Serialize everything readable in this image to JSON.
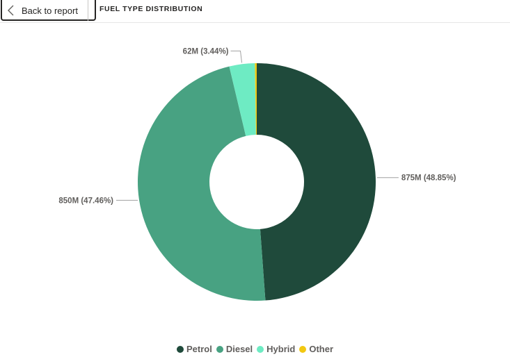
{
  "header": {
    "back_label": "Back to report",
    "page_title": "FUEL TYPE DISTRIBUTION"
  },
  "chart_data": {
    "type": "pie",
    "variant": "donut",
    "title": "",
    "legend_position": "bottom-center",
    "slices": [
      {
        "name": "Petrol",
        "value": 875,
        "percent": 48.85,
        "label": "875M (48.85%)",
        "color": "#1f4a3b"
      },
      {
        "name": "Diesel",
        "value": 850,
        "percent": 47.46,
        "label": "850M (47.46%)",
        "color": "#48a282"
      },
      {
        "name": "Hybrid",
        "value": 62,
        "percent": 3.44,
        "label": "62M (3.44%)",
        "color": "#6eebc3"
      },
      {
        "name": "Other",
        "value": 4.5,
        "percent": 0.25,
        "label": "",
        "color": "#f2c811"
      }
    ]
  }
}
